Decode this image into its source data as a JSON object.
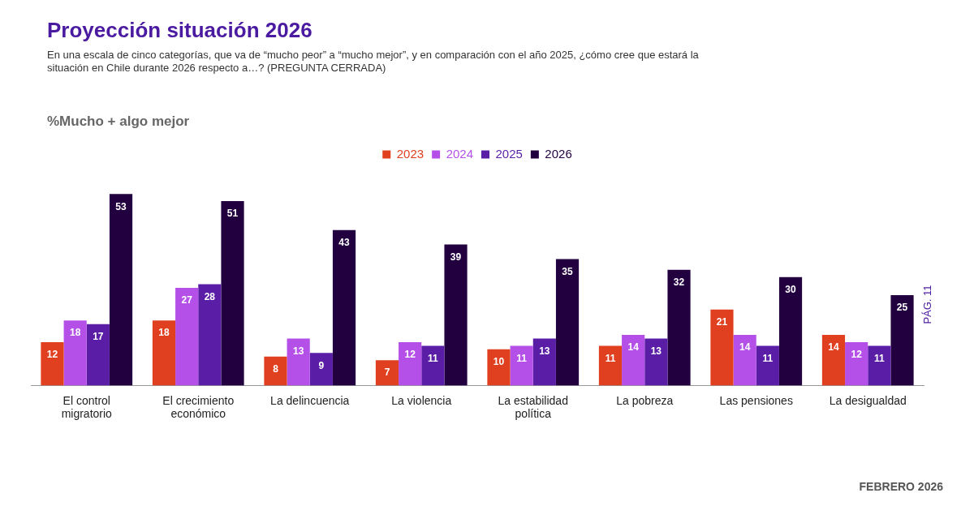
{
  "chart_data": {
    "type": "bar",
    "title": "Proyección situación 2026",
    "subtitle": "En una escala de cinco categorías, que va de “mucho peor” a “mucho mejor”, y en comparación con el año 2025, ¿cómo cree que estará la situación en Chile durante 2026 respecto a…? (PREGUNTA CERRADA)",
    "annotations": [
      "%Mucho + algo mejor",
      "FEBRERO 2026",
      "PÁG. 11"
    ],
    "categories": [
      "El control migratorio",
      "El crecimiento económico",
      "La delincuencia",
      "La violencia",
      "La estabilidad política",
      "La pobreza",
      "Las pensiones",
      "La desigualdad"
    ],
    "series": [
      {
        "name": "2023",
        "color": "#e0401f",
        "values": [
          12,
          18,
          8,
          7,
          10,
          11,
          21,
          14
        ]
      },
      {
        "name": "2024",
        "color": "#b450e8",
        "values": [
          18,
          27,
          13,
          12,
          11,
          14,
          14,
          12
        ]
      },
      {
        "name": "2025",
        "color": "#5a1ea6",
        "values": [
          17,
          28,
          9,
          11,
          13,
          13,
          11,
          11
        ]
      },
      {
        "name": "2026",
        "color": "#220040",
        "values": [
          53,
          51,
          43,
          39,
          35,
          32,
          30,
          25
        ]
      }
    ],
    "data_labels": true,
    "legend": "top",
    "grid": false
  }
}
